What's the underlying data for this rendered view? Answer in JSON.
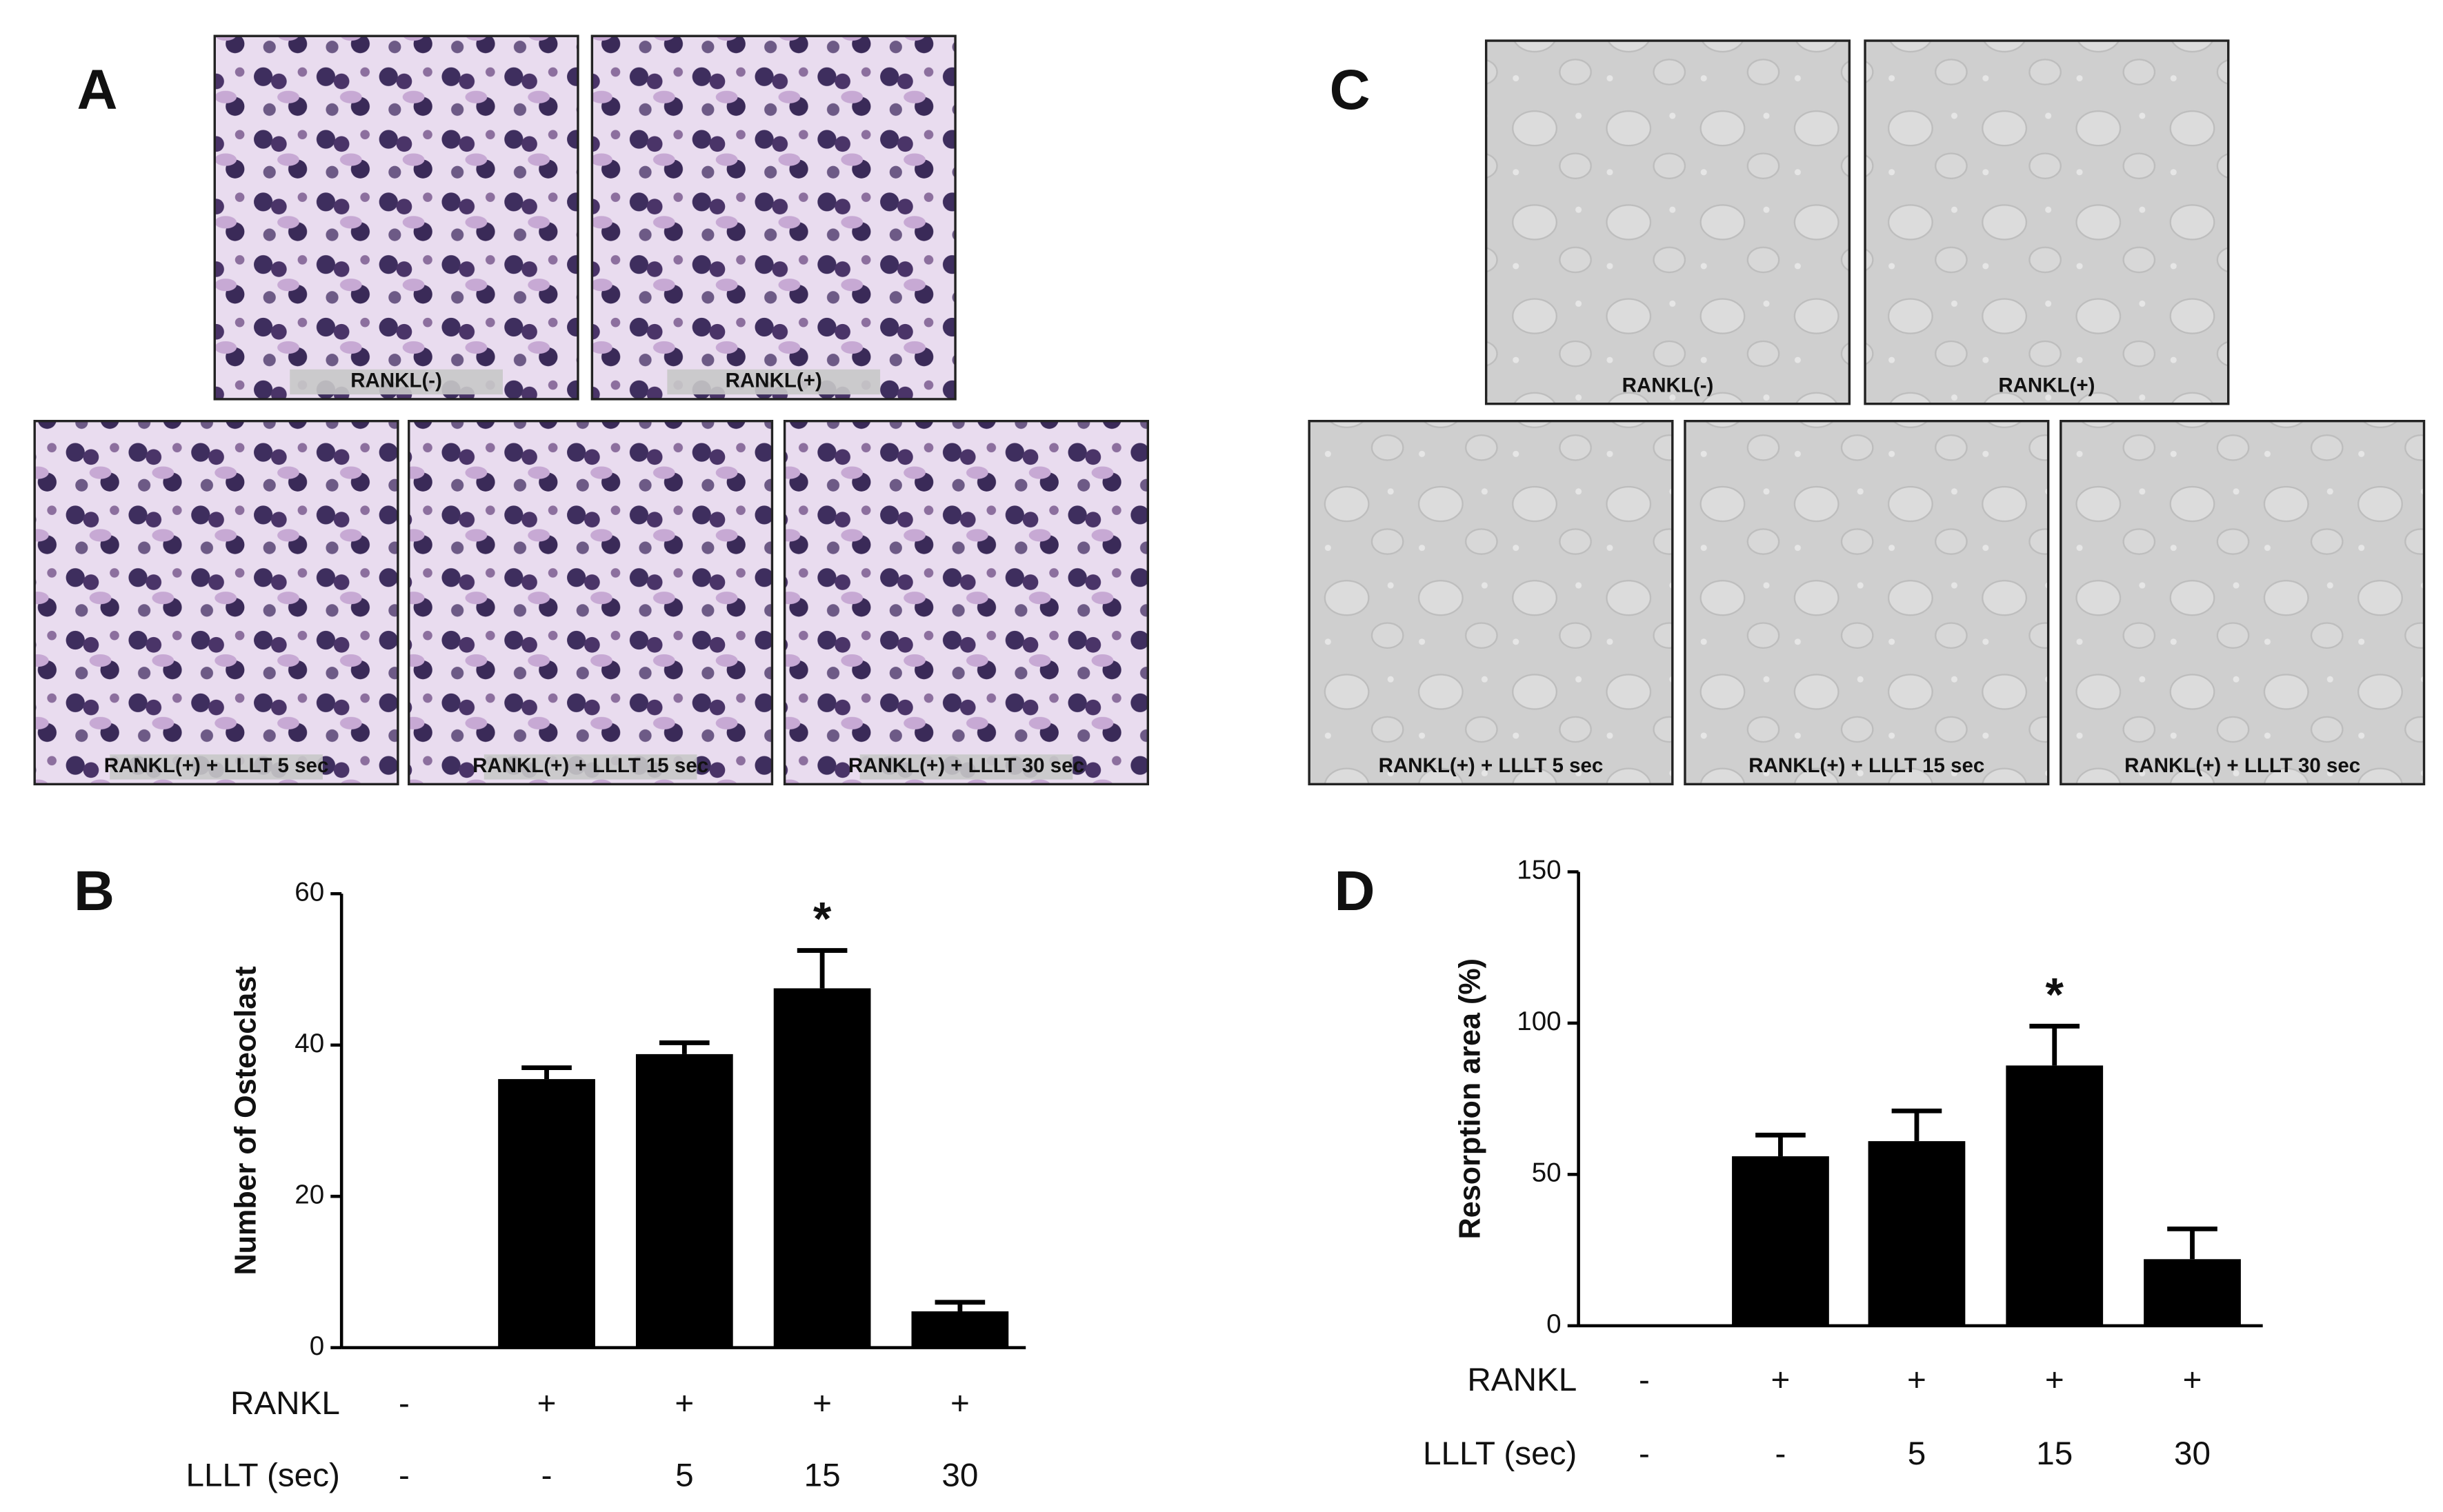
{
  "micrographs": [
    {
      "panel": "A",
      "style": "stain",
      "images": [
        "RANKL(-)",
        "RANKL(+)",
        "RANKL(+) + LLLT 5 sec",
        "RANKL(+) + LLLT 15 sec",
        "RANKL(+) + LLLT 30 sec"
      ]
    },
    {
      "panel": "C",
      "style": "pit",
      "images": [
        "RANKL(-)",
        "RANKL(+)",
        "RANKL(+) + LLLT 5 sec",
        "RANKL(+) + LLLT 15 sec",
        "RANKL(+) + LLLT 30 sec"
      ]
    }
  ],
  "chart_data": [
    {
      "type": "bar",
      "panel": "B",
      "y_label": "Number of Osteoclast",
      "color": "#000000",
      "values": [
        0,
        35.5,
        38.8,
        47.5,
        4.8
      ],
      "errors": [
        0,
        1.5,
        1.5,
        5,
        1.2
      ],
      "significance": [
        null,
        null,
        null,
        "*",
        null
      ],
      "ylim": [
        0,
        60
      ],
      "yticks": [
        0,
        20,
        40,
        60
      ],
      "category_rows": [
        {
          "label": "RANKL",
          "labels": [
            "-",
            "+",
            "+",
            "+",
            "+"
          ]
        },
        {
          "label": "LLLT (sec)",
          "labels": [
            "-",
            "-",
            "5",
            "15",
            "30"
          ]
        }
      ]
    },
    {
      "type": "bar",
      "panel": "D",
      "y_label": "Resorption area (%)",
      "color": "#000000",
      "values": [
        0,
        56,
        61,
        86,
        22
      ],
      "errors": [
        0,
        7,
        10,
        13,
        10
      ],
      "significance": [
        null,
        null,
        null,
        "*",
        null
      ],
      "ylim": [
        0,
        150
      ],
      "yticks": [
        0,
        50,
        100,
        150
      ],
      "category_rows": [
        {
          "label": "RANKL",
          "labels": [
            "-",
            "+",
            "+",
            "+",
            "+"
          ]
        },
        {
          "label": "LLLT (sec)",
          "labels": [
            "-",
            "-",
            "5",
            "15",
            "30"
          ]
        }
      ]
    }
  ]
}
